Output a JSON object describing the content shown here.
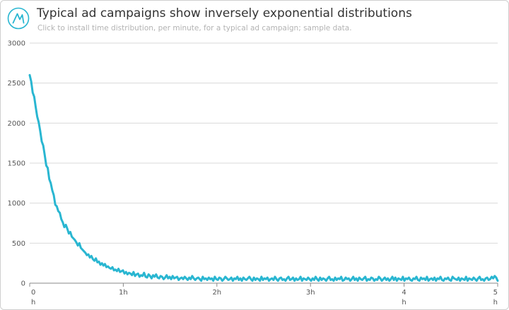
{
  "header": {
    "logo_icon": "brand-logo-icon",
    "title": "Typical ad campaigns show inversely exponential distributions",
    "subtitle": "Click to install time distribution, per minute, for a typical ad campaign; sample data."
  },
  "colors": {
    "accent": "#29b6d1",
    "grid": "#d9d9d9",
    "axis": "#888888",
    "title": "#333333",
    "subtitle": "#b3b3b3"
  },
  "chart_data": {
    "type": "line",
    "title": "Typical ad campaigns show inversely exponential distributions",
    "subtitle": "Click to install time distribution, per minute, for a typical ad campaign; sample data.",
    "xlabel": "",
    "ylabel": "",
    "x_unit": "minute",
    "xlim": [
      0,
      300
    ],
    "ylim": [
      0,
      3000
    ],
    "yticks": [
      0,
      500,
      1000,
      1500,
      2000,
      2500,
      3000
    ],
    "xticks": [
      {
        "value": 0,
        "label": "0",
        "sublabel": "h"
      },
      {
        "value": 60,
        "label": "1h",
        "sublabel": ""
      },
      {
        "value": 120,
        "label": "2h",
        "sublabel": ""
      },
      {
        "value": 180,
        "label": "3h",
        "sublabel": ""
      },
      {
        "value": 240,
        "label": "4",
        "sublabel": "h"
      },
      {
        "value": 300,
        "label": "5",
        "sublabel": "h"
      }
    ],
    "grid": true,
    "legend": "none",
    "series": [
      {
        "color": "#29b6d1",
        "values": [
          2600,
          2520,
          2380,
          2330,
          2200,
          2080,
          2010,
          1900,
          1770,
          1720,
          1600,
          1470,
          1440,
          1300,
          1250,
          1160,
          1100,
          980,
          960,
          900,
          880,
          800,
          760,
          700,
          730,
          680,
          620,
          640,
          580,
          560,
          540,
          510,
          470,
          500,
          440,
          420,
          400,
          380,
          350,
          360,
          320,
          340,
          300,
          280,
          310,
          260,
          270,
          230,
          250,
          220,
          240,
          200,
          210,
          190,
          180,
          200,
          160,
          170,
          150,
          180,
          140,
          150,
          160,
          120,
          140,
          110,
          130,
          120,
          100,
          140,
          90,
          110,
          120,
          80,
          100,
          90,
          130,
          80,
          70,
          110,
          90,
          60,
          100,
          80,
          110,
          70,
          60,
          90,
          80,
          50,
          70,
          100,
          60,
          80,
          50,
          90,
          60,
          70,
          80,
          40,
          60,
          70,
          50,
          80,
          60,
          40,
          70,
          50,
          90,
          60,
          40,
          60,
          70,
          50,
          30,
          80,
          50,
          60,
          40,
          70,
          50,
          60,
          30,
          80,
          50,
          40,
          70,
          60,
          30,
          50,
          80,
          60,
          40,
          50,
          70,
          30,
          60,
          50,
          80,
          40,
          60,
          30,
          70,
          50,
          40,
          60,
          80,
          50,
          30,
          70,
          40,
          60,
          50,
          30,
          80,
          40,
          60,
          50,
          70,
          30,
          50,
          60,
          40,
          80,
          50,
          30,
          60,
          70,
          40,
          50,
          30,
          60,
          80,
          40,
          50,
          70,
          30,
          60,
          40,
          50,
          80,
          30,
          60,
          50,
          40,
          70,
          50,
          30,
          60,
          40,
          80,
          50,
          30,
          70,
          40,
          60,
          50,
          30,
          60,
          80,
          40,
          50,
          30,
          70,
          40,
          60,
          50,
          80,
          30,
          40,
          70,
          50,
          60,
          30,
          50,
          80,
          40,
          60,
          30,
          70,
          50,
          40,
          60,
          80,
          30,
          50,
          40,
          70,
          60,
          30,
          50,
          40,
          80,
          60,
          30,
          50,
          70,
          40,
          60,
          30,
          50,
          80,
          40,
          70,
          30,
          60,
          50,
          40,
          80,
          30,
          60,
          50,
          70,
          40,
          30,
          60,
          50,
          80,
          40,
          30,
          70,
          50,
          60,
          40,
          80,
          30,
          50,
          60,
          40,
          70,
          30,
          60,
          50,
          80,
          40,
          30,
          60,
          50,
          70,
          40,
          30,
          80,
          60,
          50,
          40,
          70,
          30,
          60,
          50,
          40,
          80,
          30,
          60,
          50,
          40,
          70,
          50,
          30,
          60,
          80,
          40,
          50,
          30,
          60,
          70,
          40,
          50,
          80,
          60,
          90,
          70,
          30
        ]
      }
    ]
  }
}
